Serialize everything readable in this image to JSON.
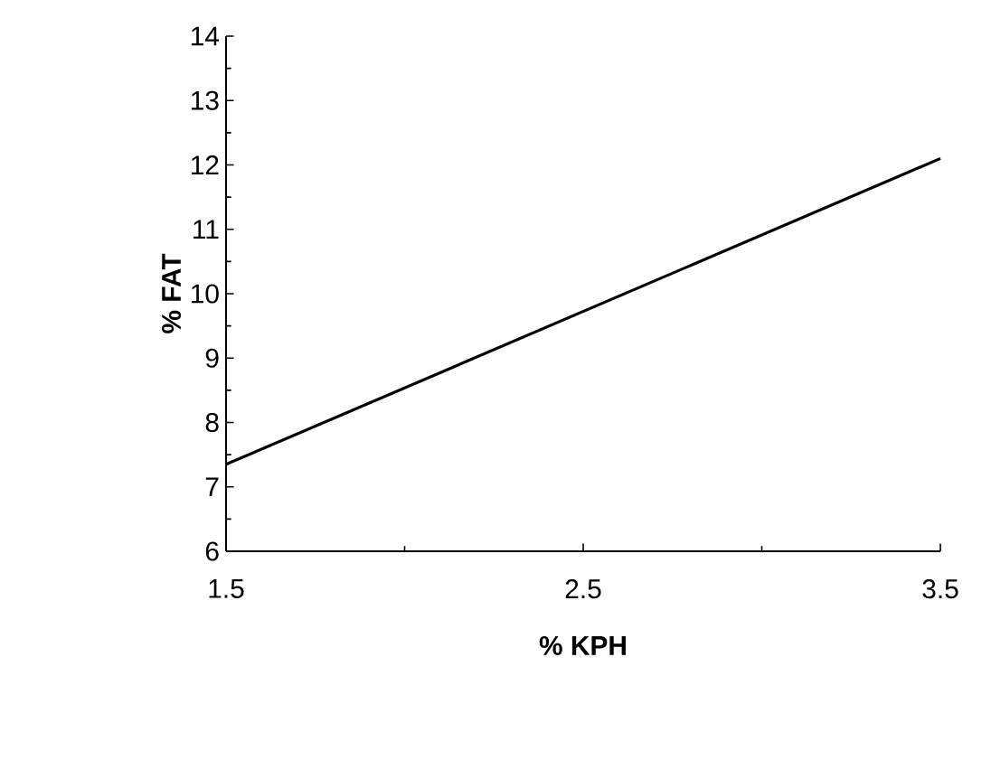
{
  "chart_data": {
    "type": "line",
    "xlabel": "% KPH",
    "ylabel": "% FAT",
    "x": [
      1.5,
      3.5
    ],
    "series": [
      {
        "color": "#000000",
        "values": [
          7.35,
          12.1
        ]
      }
    ],
    "xlim": [
      1.5,
      3.5
    ],
    "xticks": [
      1.5,
      2.5,
      3.5
    ],
    "ylim": [
      6,
      14
    ],
    "yticks": [
      6,
      7,
      8,
      9,
      10,
      11,
      12,
      13,
      14
    ],
    "grid": false,
    "marker": "none",
    "line_style": "solid"
  }
}
